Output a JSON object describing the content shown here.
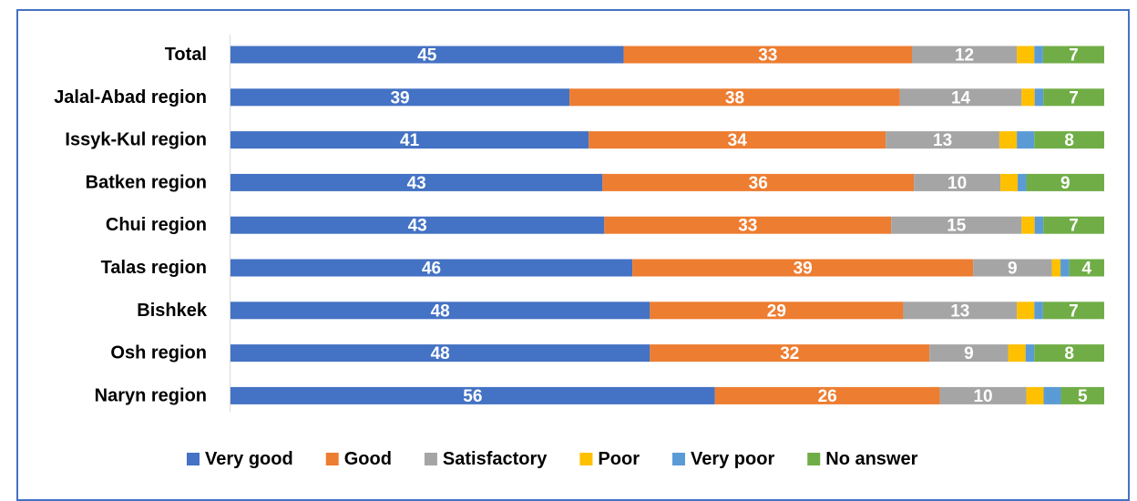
{
  "chart_data": {
    "type": "bar",
    "orientation": "horizontal",
    "stacked": true,
    "categories": [
      "Total",
      "Jalal-Abad region",
      "Issyk-Kul region",
      "Batken region",
      "Chui region",
      "Talas region",
      "Bishkek",
      "Osh region",
      "Naryn region"
    ],
    "series": [
      {
        "name": "Very good",
        "color": "#4472c4",
        "values": [
          45,
          39,
          41,
          43,
          43,
          46,
          48,
          48,
          56
        ]
      },
      {
        "name": "Good",
        "color": "#ed7d31",
        "values": [
          33,
          38,
          34,
          36,
          33,
          39,
          29,
          32,
          26
        ]
      },
      {
        "name": "Satisfactory",
        "color": "#a5a5a5",
        "values": [
          12,
          14,
          13,
          10,
          15,
          9,
          13,
          9,
          10
        ]
      },
      {
        "name": "Poor",
        "color": "#ffc000",
        "values": [
          2,
          1.5,
          2,
          2,
          1.5,
          1,
          2,
          2,
          2
        ]
      },
      {
        "name": "Very poor",
        "color": "#5b9bd5",
        "values": [
          1,
          1,
          2,
          1,
          1,
          1,
          1,
          1,
          2
        ]
      },
      {
        "name": "No answer",
        "color": "#70ad47",
        "values": [
          7,
          7,
          8,
          9,
          7,
          4,
          7,
          8,
          5
        ]
      }
    ],
    "data_labels": {
      "Very good": [
        "45",
        "39",
        "41",
        "43",
        "43",
        "46",
        "48",
        "48",
        "56"
      ],
      "Good": [
        "33",
        "38",
        "34",
        "36",
        "33",
        "39",
        "29",
        "32",
        "26"
      ],
      "Satisfactory": [
        "12",
        "14",
        "13",
        "10",
        "15",
        "9",
        "13",
        "9",
        "10"
      ],
      "No answer": [
        "7",
        "7",
        "8",
        "9",
        "7",
        "4",
        "7",
        "8",
        "5"
      ]
    },
    "xlim": [
      0,
      100
    ],
    "grid": false,
    "legend_position": "bottom",
    "title": "",
    "xlabel": "",
    "ylabel": ""
  }
}
